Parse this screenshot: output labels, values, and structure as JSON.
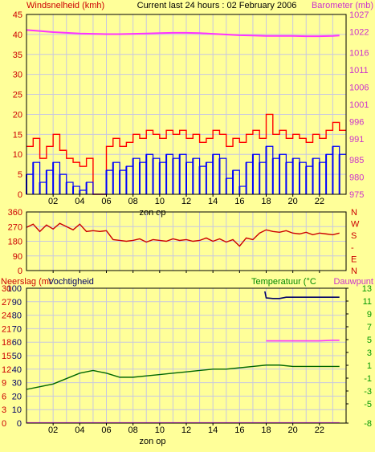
{
  "header": {
    "left_title": "Windsnelheid (kmh)",
    "center_title": "Current last 24 hours : 02 February 2006",
    "right_title": "Barometer (mb)"
  },
  "colors": {
    "background": "#FFFF99",
    "grid": "#C8C8E0",
    "wind_gust": "#FF0000",
    "wind_avg": "#0000FF",
    "barometer": "#FF33FF",
    "direction": "#CC0000",
    "humidity": "#006600",
    "rain": "#0000CC",
    "temperature": "#000066",
    "dewpoint": "#FF33FF",
    "temp_axis_green": "#009900"
  },
  "x_axis": {
    "ticks": [
      "02",
      "04",
      "06",
      "08",
      "10",
      "12",
      "14",
      "16",
      "18",
      "20",
      "22"
    ],
    "label": "zon op"
  },
  "chart_data": [
    {
      "id": "wind",
      "type": "line",
      "title": "Windsnelheid (kmh)",
      "right_title": "Barometer (mb)",
      "x_unit": "hour",
      "xlim": [
        0,
        24
      ],
      "ylim": [
        0,
        45
      ],
      "y_ticks": [
        0,
        5,
        10,
        15,
        20,
        25,
        30,
        35,
        40,
        45
      ],
      "y2lim": [
        975,
        1027
      ],
      "y2_ticks": [
        975,
        980,
        985,
        991,
        996,
        1001,
        1006,
        1011,
        1016,
        1022,
        1027
      ],
      "series": [
        {
          "axis": "left",
          "x": [
            0,
            0.5,
            1,
            1.5,
            2,
            2.5,
            3,
            3.5,
            4,
            4.5,
            5,
            5.5,
            6,
            6.5,
            7,
            7.5,
            8,
            8.5,
            9,
            9.5,
            10,
            10.5,
            11,
            11.5,
            12,
            12.5,
            13,
            13.5,
            14,
            14.5,
            15,
            15.5,
            16,
            16.5,
            17,
            17.5,
            18,
            18.5,
            19,
            19.5,
            20,
            20.5,
            21,
            21.5,
            22,
            22.5,
            23,
            23.5
          ],
          "y": [
            12,
            14,
            9,
            12,
            15,
            11,
            9,
            8,
            7,
            9,
            0,
            0,
            12,
            14,
            12,
            13,
            15,
            14,
            16,
            15,
            14,
            16,
            15,
            16,
            14,
            15,
            13,
            14,
            16,
            15,
            12,
            14,
            13,
            15,
            16,
            14,
            20,
            15,
            16,
            14,
            15,
            14,
            13,
            15,
            14,
            16,
            18,
            16
          ]
        },
        {
          "axis": "left",
          "x": [
            0,
            0.5,
            1,
            1.5,
            2,
            2.5,
            3,
            3.5,
            4,
            4.5,
            5,
            5.5,
            6,
            6.5,
            7,
            7.5,
            8,
            8.5,
            9,
            9.5,
            10,
            10.5,
            11,
            11.5,
            12,
            12.5,
            13,
            13.5,
            14,
            14.5,
            15,
            15.5,
            16,
            16.5,
            17,
            17.5,
            18,
            18.5,
            19,
            19.5,
            20,
            20.5,
            21,
            21.5,
            22,
            22.5,
            23,
            23.5
          ],
          "y": [
            5,
            8,
            3,
            6,
            8,
            5,
            3,
            2,
            1,
            3,
            0,
            0,
            6,
            8,
            6,
            7,
            9,
            8,
            10,
            9,
            8,
            10,
            9,
            10,
            8,
            9,
            7,
            8,
            10,
            9,
            4,
            6,
            2,
            8,
            10,
            8,
            12,
            9,
            10,
            8,
            9,
            8,
            7,
            9,
            8,
            10,
            12,
            10
          ]
        },
        {
          "axis": "right",
          "x": [
            0,
            1,
            2,
            3,
            4,
            5,
            6,
            7,
            8,
            9,
            10,
            11,
            12,
            13,
            14,
            15,
            16,
            17,
            18,
            19,
            20,
            21,
            22,
            23,
            23.5
          ],
          "y": [
            1022.5,
            1022.2,
            1021.9,
            1021.7,
            1021.5,
            1021.4,
            1021.3,
            1021.3,
            1021.4,
            1021.5,
            1021.6,
            1021.7,
            1021.7,
            1021.6,
            1021.4,
            1021.2,
            1021.0,
            1020.9,
            1020.8,
            1020.8,
            1020.8,
            1020.7,
            1020.7,
            1020.8,
            1020.9
          ]
        }
      ]
    },
    {
      "id": "direction",
      "type": "line",
      "x_unit": "hour",
      "xlim": [
        0,
        24
      ],
      "ylim": [
        0,
        360
      ],
      "y_ticks": [
        0,
        90,
        180,
        270,
        360
      ],
      "right_labels": [
        "N",
        "W",
        "S",
        "-",
        "E",
        "N"
      ],
      "series": [
        {
          "x": [
            0,
            0.5,
            1,
            1.5,
            2,
            2.5,
            3,
            3.5,
            4,
            4.5,
            5,
            5.5,
            6,
            6.5,
            7,
            7.5,
            8,
            8.5,
            9,
            9.5,
            10,
            10.5,
            11,
            11.5,
            12,
            12.5,
            13,
            13.5,
            14,
            14.5,
            15,
            15.5,
            16,
            16.5,
            17,
            17.5,
            18,
            18.5,
            19,
            19.5,
            20,
            20.5,
            21,
            21.5,
            22,
            22.5,
            23,
            23.5
          ],
          "y": [
            265,
            285,
            240,
            280,
            255,
            290,
            270,
            250,
            285,
            240,
            245,
            240,
            245,
            190,
            185,
            180,
            185,
            195,
            175,
            190,
            185,
            180,
            195,
            185,
            190,
            180,
            185,
            200,
            180,
            195,
            175,
            190,
            150,
            200,
            190,
            230,
            250,
            240,
            235,
            245,
            230,
            225,
            235,
            220,
            230,
            225,
            220,
            230
          ]
        }
      ]
    },
    {
      "id": "humidity",
      "type": "line",
      "left_title": "Neerslag (mr",
      "left_title2": "Vochtigheid",
      "right_title": "Temperatuur (°C",
      "right_title2": "Dauwpunt",
      "x_unit": "hour",
      "xlim": [
        0,
        24
      ],
      "ylim": [
        0,
        100
      ],
      "y_ticks": [
        0,
        10,
        20,
        30,
        40,
        50,
        60,
        70,
        80,
        90,
        100
      ],
      "y_left2_ticks": [
        0,
        3,
        6,
        9,
        12,
        15,
        18,
        21,
        24,
        27,
        30
      ],
      "y2lim": [
        -8,
        13
      ],
      "y2_ticks": [
        -8,
        -5,
        -3,
        -1,
        1,
        3,
        5,
        7,
        9,
        11,
        13
      ],
      "series": [
        {
          "axis": "left",
          "x": [
            0,
            1,
            2,
            3,
            4,
            5,
            6,
            7,
            8,
            9,
            10,
            11,
            12,
            13,
            14,
            15,
            16,
            17,
            18,
            19,
            20,
            21,
            22,
            23,
            23.5
          ],
          "y": [
            25,
            27,
            29,
            33,
            37,
            39,
            37,
            34,
            34,
            35,
            36,
            37,
            38,
            39,
            40,
            40,
            41,
            42,
            43,
            43,
            42,
            42,
            42,
            42,
            42
          ]
        },
        {
          "axis": "left",
          "x": [
            0,
            23.5
          ],
          "y": [
            0.3,
            0.3
          ]
        },
        {
          "axis": "right",
          "x": [
            17.9,
            18,
            18.5,
            19,
            19.5,
            20,
            21,
            22,
            23,
            23.5
          ],
          "y": [
            12.5,
            11.5,
            11.4,
            11.4,
            11.6,
            11.6,
            11.6,
            11.6,
            11.6,
            11.6
          ]
        },
        {
          "axis": "right",
          "x": [
            18,
            19,
            20,
            21,
            22,
            23,
            23.5
          ],
          "y": [
            4.8,
            4.8,
            4.8,
            4.8,
            4.8,
            4.9,
            4.9
          ]
        }
      ]
    }
  ]
}
